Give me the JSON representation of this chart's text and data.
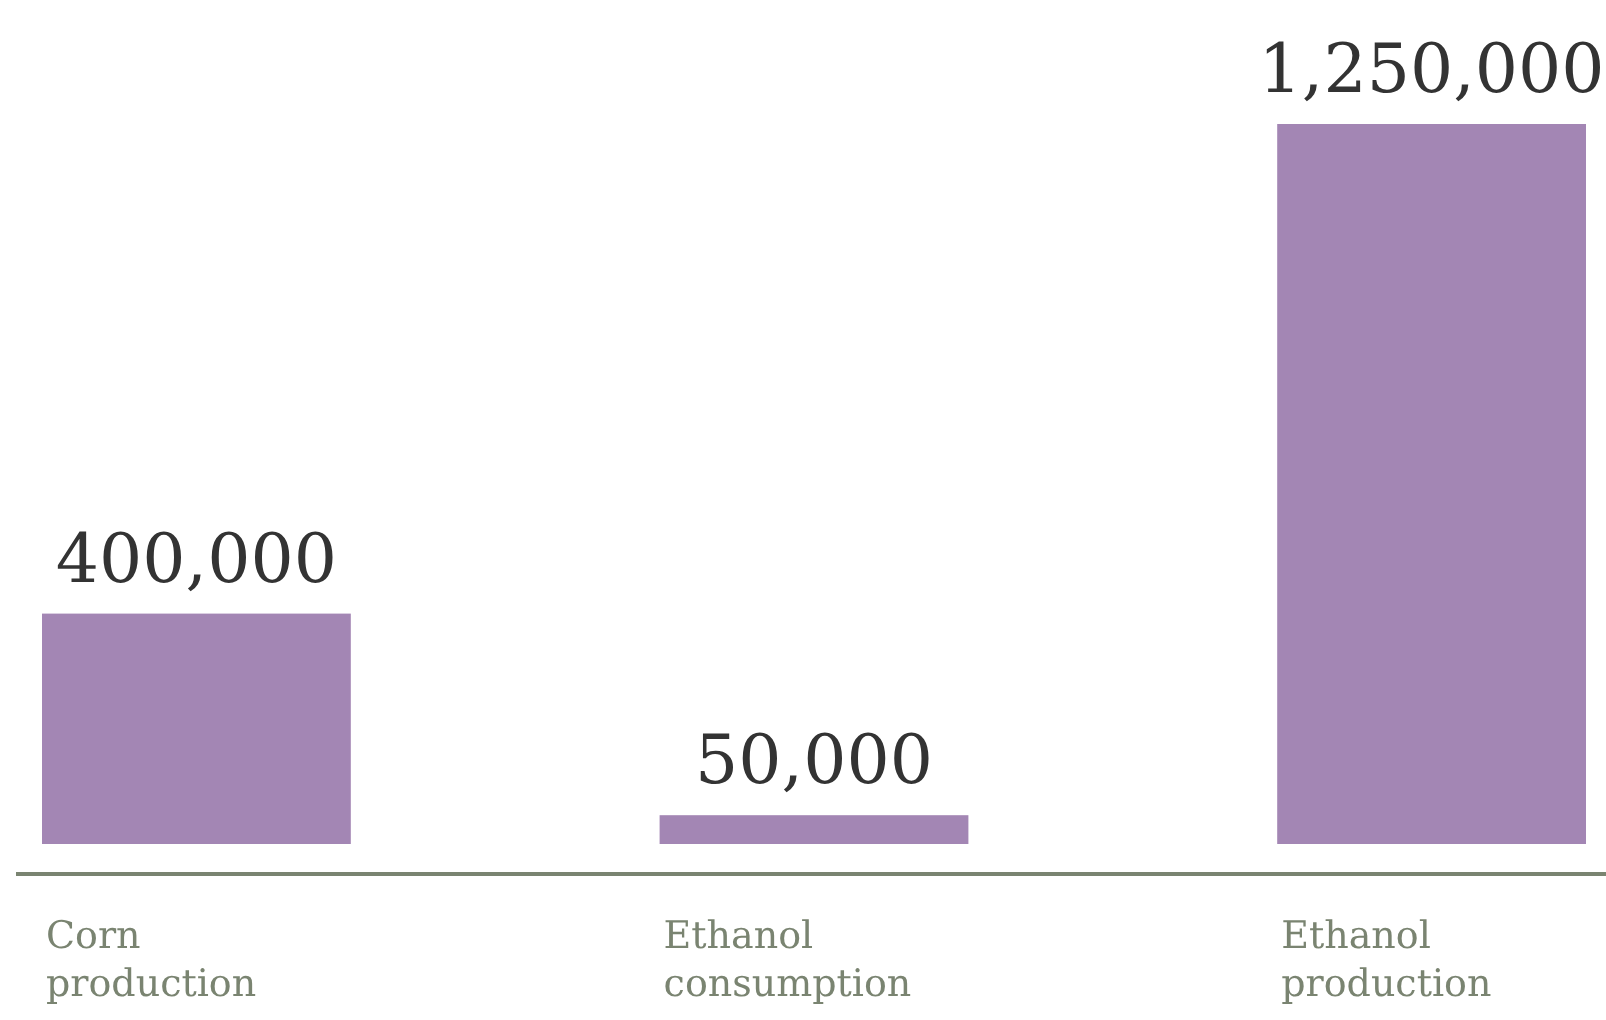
{
  "chart_data": {
    "type": "bar",
    "categories": [
      "Corn production",
      "Ethanol consumption",
      "Ethanol production"
    ],
    "values": [
      400000,
      50000,
      1250000
    ],
    "value_labels": [
      "400,000",
      "50,000",
      "1,250,000"
    ],
    "color": "#a386b4"
  }
}
